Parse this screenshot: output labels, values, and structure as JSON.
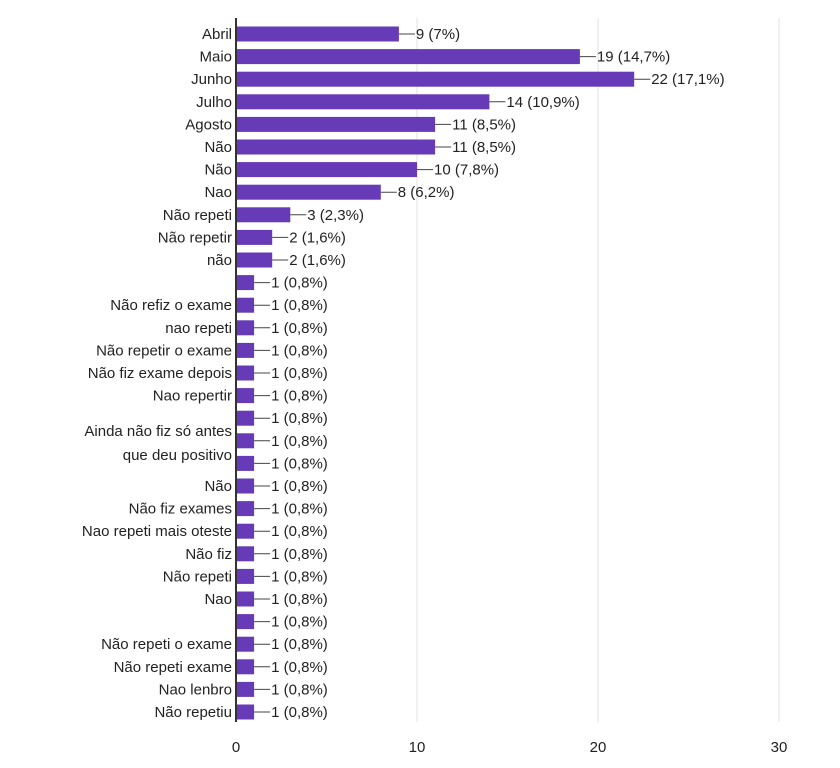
{
  "chart_data": {
    "type": "bar",
    "orientation": "horizontal",
    "title": "",
    "xlabel": "",
    "ylabel": "",
    "xlim": [
      0,
      30
    ],
    "xticks": [
      "0",
      "10",
      "20",
      "30"
    ],
    "grid": true,
    "bar_color": "#673ab7",
    "categories": [
      "Abril",
      "Maio",
      "Junho",
      "Julho",
      "Agosto",
      "Não",
      "Não",
      "Nao",
      "Não repeti",
      "Não repetir",
      "não",
      "",
      "Não refiz o exame",
      "nao repeti",
      "Não repetir o exame",
      "Não fiz exame depois",
      "Nao repertir",
      "",
      "",
      "",
      "Não",
      "Não fiz exames",
      "Nao repeti mais oteste",
      "Não fiz",
      "Não repeti",
      "Nao",
      "",
      "Não repeti o exame",
      "Não repeti exame",
      "Nao lenbro",
      "Não repetiu"
    ],
    "wrapped_category_label": [
      "Ainda não fiz só antes",
      "que deu positivo"
    ],
    "values": [
      9,
      19,
      22,
      14,
      11,
      11,
      10,
      8,
      3,
      2,
      2,
      1,
      1,
      1,
      1,
      1,
      1,
      1,
      1,
      1,
      1,
      1,
      1,
      1,
      1,
      1,
      1,
      1,
      1,
      1,
      1
    ],
    "data_labels": [
      "9 (7%)",
      "19 (14,7%)",
      "22 (17,1%)",
      "14 (10,9%)",
      "11 (8,5%)",
      "11 (8,5%)",
      "10 (7,8%)",
      "8 (6,2%)",
      "3 (2,3%)",
      "2 (1,6%)",
      "2 (1,6%)",
      "1 (0,8%)",
      "1 (0,8%)",
      "1 (0,8%)",
      "1 (0,8%)",
      "1 (0,8%)",
      "1 (0,8%)",
      "1 (0,8%)",
      "1 (0,8%)",
      "1 (0,8%)",
      "1 (0,8%)",
      "1 (0,8%)",
      "1 (0,8%)",
      "1 (0,8%)",
      "1 (0,8%)",
      "1 (0,8%)",
      "1 (0,8%)",
      "1 (0,8%)",
      "1 (0,8%)",
      "1 (0,8%)",
      "1 (0,8%)"
    ]
  }
}
